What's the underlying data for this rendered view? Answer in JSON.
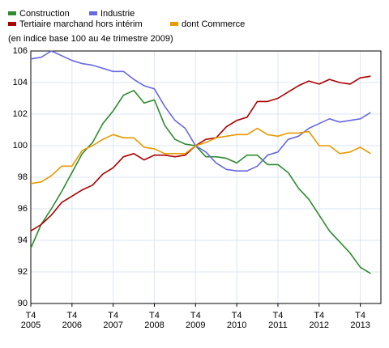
{
  "chart_data": {
    "type": "line",
    "subtitle": "(en indice base 100 au 4e trimestre 2009)",
    "categories": [
      "T4 2005",
      null,
      null,
      null,
      "T4 2006",
      null,
      null,
      null,
      "T4 2007",
      null,
      null,
      null,
      "T4 2008",
      null,
      null,
      null,
      "T4 2009",
      null,
      null,
      null,
      "T4 2010",
      null,
      null,
      null,
      "T4 2011",
      null,
      null,
      null,
      "T4 2012",
      null,
      null,
      null,
      "T4 2013",
      null
    ],
    "series": [
      {
        "name": "Construction",
        "color": "#2e8b2e",
        "values": [
          93.5,
          95.0,
          96.0,
          97.1,
          98.3,
          99.5,
          100.2,
          101.4,
          102.2,
          103.2,
          103.5,
          102.7,
          102.9,
          101.3,
          100.4,
          100.1,
          100.0,
          99.3,
          99.3,
          99.2,
          98.9,
          99.4,
          99.4,
          98.8,
          98.8,
          98.3,
          97.3,
          96.6,
          95.6,
          94.6,
          93.9,
          93.2,
          92.3,
          91.9
        ]
      },
      {
        "name": "Industrie",
        "color": "#6868e0",
        "values": [
          105.5,
          105.6,
          106.0,
          105.7,
          105.4,
          105.2,
          105.1,
          104.9,
          104.7,
          104.7,
          104.2,
          103.8,
          103.6,
          102.5,
          101.6,
          101.1,
          100.0,
          99.6,
          98.9,
          98.5,
          98.4,
          98.4,
          98.7,
          99.4,
          99.6,
          100.4,
          100.6,
          101.1,
          101.4,
          101.7,
          101.5,
          101.6,
          101.7,
          102.1
        ]
      },
      {
        "name": "Tertiaire marchand hors intérim",
        "color": "#aa0000",
        "values": [
          94.6,
          95.0,
          95.6,
          96.4,
          96.8,
          97.2,
          97.5,
          98.2,
          98.6,
          99.3,
          99.5,
          99.1,
          99.4,
          99.4,
          99.3,
          99.4,
          100.0,
          100.4,
          100.5,
          101.2,
          101.6,
          101.8,
          102.8,
          102.8,
          103.0,
          103.4,
          103.8,
          104.1,
          103.9,
          104.2,
          104.0,
          103.9,
          104.3,
          104.4
        ]
      },
      {
        "name": "dont Commerce",
        "color": "#e89a00",
        "values": [
          97.6,
          97.7,
          98.1,
          98.7,
          98.7,
          99.7,
          100.0,
          100.4,
          100.7,
          100.5,
          100.5,
          99.9,
          99.8,
          99.5,
          99.5,
          99.5,
          100.0,
          100.2,
          100.5,
          100.6,
          100.7,
          100.7,
          101.1,
          100.7,
          100.6,
          100.8,
          100.8,
          100.9,
          100.0,
          100.0,
          99.5,
          99.6,
          99.9,
          99.5
        ]
      }
    ],
    "ylim": [
      90,
      106
    ],
    "yticks": [
      90,
      92,
      94,
      96,
      98,
      100,
      102,
      104,
      106
    ],
    "grid": true
  }
}
